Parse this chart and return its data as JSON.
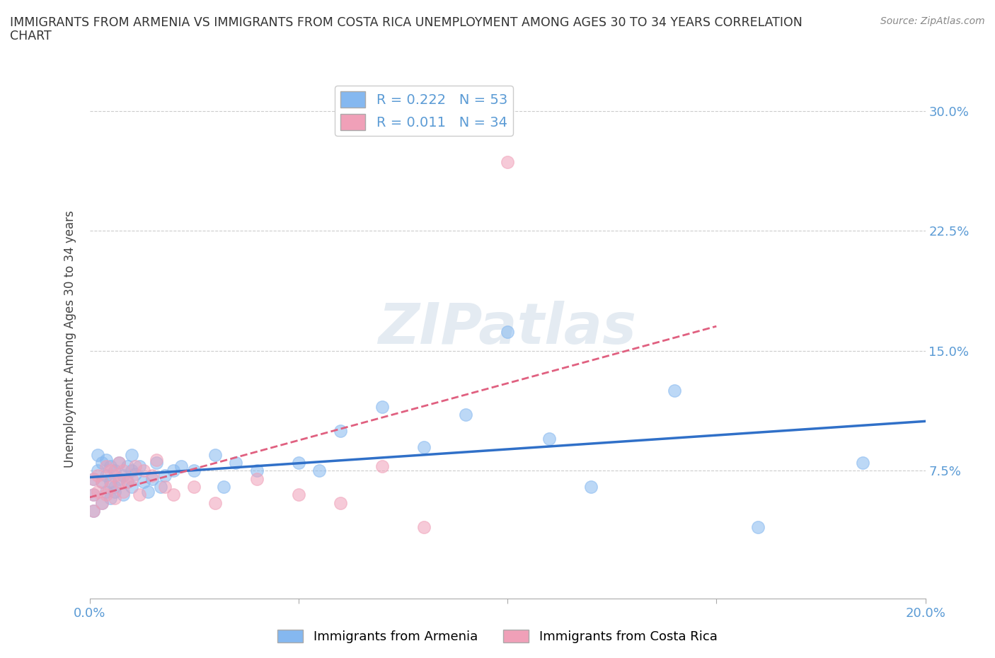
{
  "title_line1": "IMMIGRANTS FROM ARMENIA VS IMMIGRANTS FROM COSTA RICA UNEMPLOYMENT AMONG AGES 30 TO 34 YEARS CORRELATION",
  "title_line2": "CHART",
  "source_text": "Source: ZipAtlas.com",
  "ylabel": "Unemployment Among Ages 30 to 34 years",
  "xlim": [
    0.0,
    0.2
  ],
  "ylim": [
    -0.005,
    0.32
  ],
  "ytick_vals": [
    0.075,
    0.15,
    0.225,
    0.3
  ],
  "ytick_labels_right": [
    "7.5%",
    "15.0%",
    "22.5%",
    "30.0%"
  ],
  "grid_color": "#cccccc",
  "armenia_color": "#85b8f0",
  "costa_rica_color": "#f0a0b8",
  "armenia_R": 0.222,
  "armenia_N": 53,
  "costa_rica_R": 0.011,
  "costa_rica_N": 34,
  "armenia_line_color": "#3070c8",
  "costa_rica_line_color": "#e06080",
  "legend_label_armenia": "Immigrants from Armenia",
  "legend_label_costa_rica": "Immigrants from Costa Rica",
  "arm_x": [
    0.001,
    0.001,
    0.001,
    0.002,
    0.002,
    0.003,
    0.003,
    0.003,
    0.004,
    0.004,
    0.004,
    0.005,
    0.005,
    0.005,
    0.006,
    0.006,
    0.006,
    0.007,
    0.007,
    0.008,
    0.008,
    0.009,
    0.009,
    0.01,
    0.01,
    0.01,
    0.011,
    0.012,
    0.013,
    0.014,
    0.015,
    0.016,
    0.017,
    0.018,
    0.02,
    0.022,
    0.025,
    0.03,
    0.032,
    0.035,
    0.04,
    0.05,
    0.055,
    0.06,
    0.07,
    0.08,
    0.09,
    0.1,
    0.11,
    0.12,
    0.14,
    0.16,
    0.185
  ],
  "arm_y": [
    0.06,
    0.07,
    0.05,
    0.075,
    0.085,
    0.055,
    0.068,
    0.08,
    0.062,
    0.072,
    0.082,
    0.058,
    0.068,
    0.078,
    0.065,
    0.075,
    0.062,
    0.07,
    0.08,
    0.06,
    0.072,
    0.068,
    0.078,
    0.065,
    0.075,
    0.085,
    0.073,
    0.078,
    0.068,
    0.062,
    0.07,
    0.08,
    0.065,
    0.072,
    0.075,
    0.078,
    0.075,
    0.085,
    0.065,
    0.08,
    0.075,
    0.08,
    0.075,
    0.1,
    0.115,
    0.09,
    0.11,
    0.162,
    0.095,
    0.065,
    0.125,
    0.04,
    0.08
  ],
  "cr_x": [
    0.001,
    0.001,
    0.001,
    0.002,
    0.002,
    0.003,
    0.003,
    0.004,
    0.004,
    0.005,
    0.005,
    0.006,
    0.006,
    0.007,
    0.007,
    0.008,
    0.008,
    0.009,
    0.01,
    0.011,
    0.012,
    0.013,
    0.015,
    0.016,
    0.018,
    0.02,
    0.025,
    0.03,
    0.04,
    0.05,
    0.06,
    0.07,
    0.08,
    0.1
  ],
  "cr_y": [
    0.06,
    0.07,
    0.05,
    0.062,
    0.072,
    0.055,
    0.068,
    0.06,
    0.078,
    0.065,
    0.075,
    0.058,
    0.072,
    0.068,
    0.08,
    0.062,
    0.075,
    0.068,
    0.07,
    0.078,
    0.06,
    0.075,
    0.072,
    0.082,
    0.065,
    0.06,
    0.065,
    0.055,
    0.07,
    0.06,
    0.055,
    0.078,
    0.04,
    0.268
  ]
}
